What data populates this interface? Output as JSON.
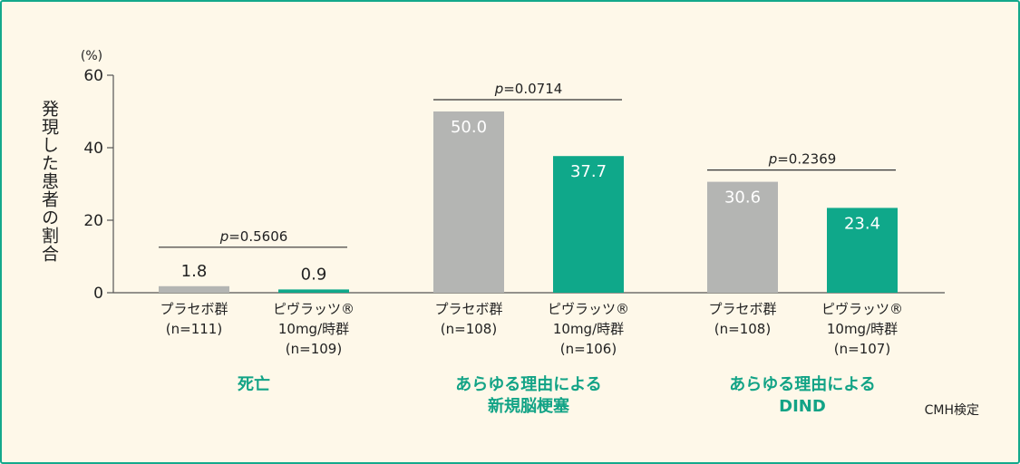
{
  "chart_data": {
    "type": "bar",
    "ylabel": "発現した患者の割合",
    "yunit": "(%)",
    "ylim": [
      0,
      60
    ],
    "yticks": [
      0,
      20,
      40,
      60
    ],
    "grid": false,
    "colors": {
      "placebo": "#b4b5b3",
      "pivlaz": "#0fa88a",
      "category": "#12a386",
      "frame": "#14a98c",
      "background": "#fef8e9"
    },
    "groups": [
      {
        "category": [
          "死亡"
        ],
        "p_value": "=0.5606",
        "bars": [
          {
            "label": [
              "プラセボ群",
              "(n=111)"
            ],
            "value": 1.8,
            "value_label": "1.8",
            "series": "placebo"
          },
          {
            "label": [
              "ピヴラッツ®",
              "10mg/時群",
              "(n=109)"
            ],
            "value": 0.9,
            "value_label": "0.9",
            "series": "pivlaz"
          }
        ]
      },
      {
        "category": [
          "あらゆる理由による",
          "新規脳梗塞"
        ],
        "p_value": "=0.0714",
        "bars": [
          {
            "label": [
              "プラセボ群",
              "(n=108)"
            ],
            "value": 50.0,
            "value_label": "50.0",
            "series": "placebo"
          },
          {
            "label": [
              "ピヴラッツ®",
              "10mg/時群",
              "(n=106)"
            ],
            "value": 37.7,
            "value_label": "37.7",
            "series": "pivlaz"
          }
        ]
      },
      {
        "category": [
          "あらゆる理由による",
          "DIND"
        ],
        "p_value": "=0.2369",
        "bars": [
          {
            "label": [
              "プラセボ群",
              "(n=108)"
            ],
            "value": 30.6,
            "value_label": "30.6",
            "series": "placebo"
          },
          {
            "label": [
              "ピヴラッツ®",
              "10mg/時群",
              "(n=107)"
            ],
            "value": 23.4,
            "value_label": "23.4",
            "series": "pivlaz"
          }
        ]
      }
    ],
    "p_prefix": "p",
    "footnote": "CMH検定"
  }
}
